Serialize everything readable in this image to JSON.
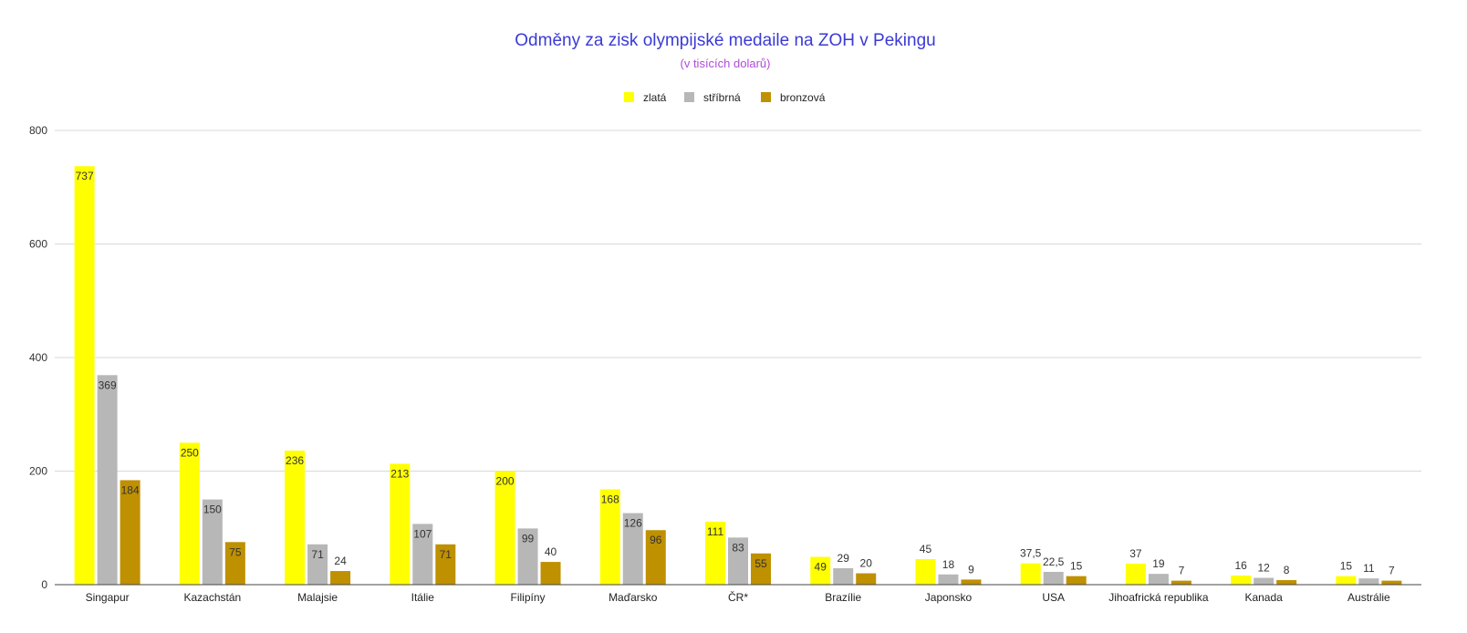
{
  "chart_data": {
    "type": "bar",
    "title": "Odměny za zisk olympijské medaile na ZOH v Pekingu",
    "subtitle": "(v tisících dolarů)",
    "categories": [
      "Singapur",
      "Kazachstán",
      "Malajsie",
      "Itálie",
      "Filipíny",
      "Maďarsko",
      "ČR*",
      "Brazílie",
      "Japonsko",
      "USA",
      "Jihoafrická republika",
      "Kanada",
      "Austrálie"
    ],
    "series": [
      {
        "name": "zlatá",
        "color": "#ffff00",
        "values": [
          737,
          250,
          236,
          213,
          200,
          168,
          111,
          49,
          45,
          37.5,
          37,
          16,
          15
        ],
        "labels": [
          "737",
          "250",
          "236",
          "213",
          "200",
          "168",
          "111",
          "49",
          "45",
          "37,5",
          "37",
          "16",
          "15"
        ]
      },
      {
        "name": "stříbrná",
        "color": "#b7b7b7",
        "values": [
          369,
          150,
          71,
          107,
          99,
          126,
          83,
          29,
          18,
          22.5,
          19,
          12,
          11
        ],
        "labels": [
          "369",
          "150",
          "71",
          "107",
          "99",
          "126",
          "83",
          "29",
          "18",
          "22,5",
          "19",
          "12",
          "11"
        ]
      },
      {
        "name": "bronzová",
        "color": "#bf9000",
        "values": [
          184,
          75,
          24,
          71,
          40,
          96,
          55,
          20,
          9,
          15,
          7,
          8,
          7
        ],
        "labels": [
          "184",
          "75",
          "24",
          "71",
          "40",
          "96",
          "55",
          "20",
          "9",
          "15",
          "7",
          "8",
          "7"
        ]
      }
    ],
    "ylim": [
      0,
      800
    ],
    "yticks": [
      0,
      200,
      400,
      600,
      800
    ],
    "grid": true,
    "legend_position": "top-center"
  }
}
